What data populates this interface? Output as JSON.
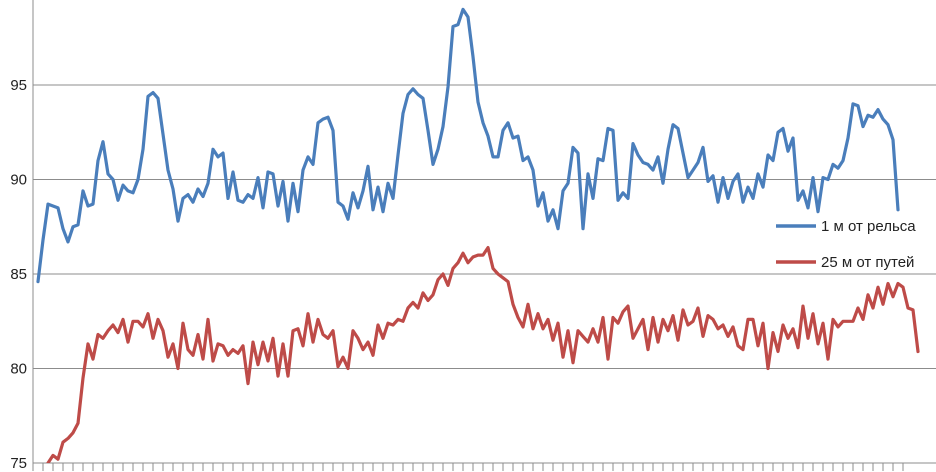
{
  "chart_data": {
    "type": "line",
    "title": "",
    "xlabel": "",
    "ylabel": "",
    "ylim": [
      75,
      99.5
    ],
    "yticks": [
      75,
      80,
      85,
      90,
      95
    ],
    "grid": true,
    "legend_position": "right",
    "series": [
      {
        "name": "1 м от рельса",
        "color": "#4a7ebb",
        "values": [
          84.6,
          86.8,
          88.7,
          88.6,
          88.5,
          87.4,
          86.7,
          87.5,
          87.6,
          89.4,
          88.6,
          88.7,
          91.0,
          92.0,
          90.3,
          90.0,
          88.9,
          89.7,
          89.4,
          89.3,
          90.0,
          91.6,
          94.4,
          94.6,
          94.3,
          92.4,
          90.5,
          89.5,
          87.8,
          89.0,
          89.2,
          88.8,
          89.5,
          89.1,
          89.8,
          91.6,
          91.2,
          91.4,
          89.0,
          90.4,
          88.9,
          88.8,
          89.2,
          89.0,
          90.1,
          88.5,
          90.4,
          90.3,
          88.6,
          89.9,
          87.8,
          89.8,
          88.3,
          90.5,
          91.2,
          90.8,
          93.0,
          93.2,
          93.3,
          92.6,
          88.8,
          88.6,
          87.9,
          89.3,
          88.5,
          89.4,
          90.7,
          88.4,
          89.6,
          88.3,
          89.8,
          89.0,
          91.3,
          93.5,
          94.5,
          94.8,
          94.5,
          94.3,
          92.6,
          90.8,
          91.6,
          92.8,
          94.9,
          98.1,
          98.2,
          99.0,
          98.6,
          96.5,
          94.1,
          93.0,
          92.3,
          91.2,
          91.2,
          92.6,
          93.0,
          92.2,
          92.3,
          91.0,
          91.2,
          90.5,
          88.6,
          89.3,
          87.8,
          88.4,
          87.4,
          89.4,
          89.8,
          91.7,
          91.4,
          87.4,
          90.3,
          89.0,
          91.1,
          91.0,
          92.7,
          92.6,
          88.9,
          89.3,
          89.0,
          91.9,
          91.3,
          90.9,
          90.8,
          90.5,
          91.2,
          89.8,
          91.6,
          92.9,
          92.7,
          91.4,
          90.1,
          90.5,
          90.9,
          91.7,
          89.9,
          90.2,
          88.8,
          90.1,
          89.0,
          89.9,
          90.3,
          88.8,
          89.6,
          89.0,
          90.3,
          89.6,
          91.3,
          91.0,
          92.5,
          92.7,
          91.5,
          92.2,
          88.9,
          89.4,
          88.5,
          90.1,
          88.3,
          90.1,
          90.0,
          90.8,
          90.6,
          91.0,
          92.2,
          94.0,
          93.9,
          92.8,
          93.4,
          93.3,
          93.7,
          93.2,
          92.9,
          92.1,
          88.4
        ]
      },
      {
        "name": "25 м от путей",
        "color": "#be4b48",
        "values": [
          74.6,
          74.6,
          75.0,
          75.4,
          75.2,
          76.1,
          76.3,
          76.6,
          77.1,
          79.5,
          81.3,
          80.5,
          81.8,
          81.6,
          82.0,
          82.3,
          81.9,
          82.6,
          81.4,
          82.5,
          82.5,
          82.2,
          82.9,
          81.6,
          82.6,
          82.0,
          80.6,
          81.3,
          80.0,
          82.4,
          81.0,
          80.7,
          81.8,
          80.5,
          82.6,
          80.4,
          81.3,
          81.2,
          80.7,
          81.0,
          80.8,
          81.2,
          79.2,
          81.4,
          80.2,
          81.4,
          80.4,
          81.6,
          79.6,
          81.3,
          79.6,
          82.0,
          82.1,
          81.2,
          82.9,
          81.4,
          82.6,
          81.8,
          81.6,
          82.0,
          80.1,
          80.6,
          80.0,
          82.0,
          81.6,
          81.0,
          81.4,
          80.7,
          82.3,
          81.6,
          82.4,
          82.3,
          82.6,
          82.5,
          83.2,
          83.5,
          83.2,
          84.0,
          83.6,
          83.9,
          84.7,
          85.0,
          84.4,
          85.3,
          85.6,
          86.1,
          85.6,
          85.9,
          86.0,
          86.0,
          86.4,
          85.3,
          85.0,
          84.8,
          84.6,
          83.4,
          82.7,
          82.2,
          83.4,
          82.1,
          82.9,
          82.1,
          82.6,
          81.5,
          82.4,
          80.6,
          82.0,
          80.3,
          82.0,
          81.7,
          81.4,
          82.1,
          81.4,
          82.7,
          80.5,
          82.7,
          82.4,
          83.0,
          83.3,
          81.6,
          82.1,
          82.6,
          81.0,
          82.7,
          81.4,
          82.6,
          82.0,
          82.8,
          81.5,
          83.1,
          82.3,
          82.5,
          83.2,
          81.7,
          82.8,
          82.6,
          82.1,
          82.3,
          81.7,
          82.2,
          81.2,
          81.0,
          82.6,
          82.6,
          81.2,
          82.4,
          80.0,
          81.9,
          80.9,
          82.3,
          81.6,
          82.1,
          81.1,
          83.3,
          81.6,
          82.9,
          81.3,
          82.4,
          80.5,
          82.6,
          82.2,
          82.5,
          82.5,
          82.5,
          83.2,
          82.6,
          83.9,
          83.2,
          84.3,
          83.4,
          84.5,
          83.8,
          84.5,
          84.3,
          83.2,
          83.1,
          80.9
        ]
      }
    ]
  }
}
